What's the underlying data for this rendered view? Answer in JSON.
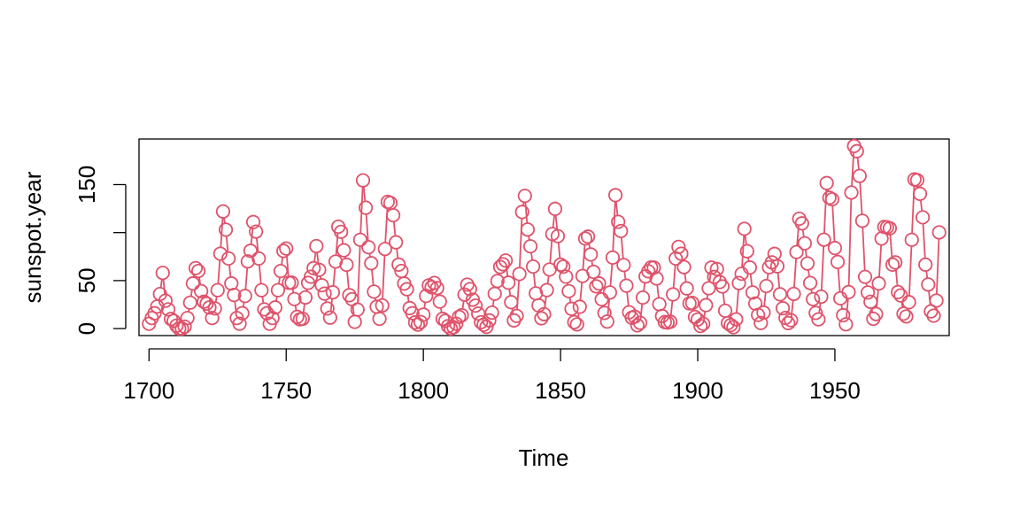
{
  "chart_data": {
    "type": "line",
    "plot_style": "both",
    "xlabel": "Time",
    "ylabel": "sunspot.year",
    "color": "#DF536B",
    "xlim": [
      1700,
      1988
    ],
    "ylim": [
      0,
      190.2
    ],
    "x_ticks": [
      1700,
      1750,
      1800,
      1850,
      1900,
      1950
    ],
    "y_ticks": [
      0,
      50,
      150
    ],
    "x_start": 1700,
    "values": [
      5,
      11,
      16,
      23,
      36,
      58,
      29,
      20,
      10,
      8,
      3,
      0,
      0,
      2,
      11,
      27,
      47,
      63,
      60,
      39,
      28,
      26,
      22,
      11,
      21,
      40,
      78,
      122,
      103,
      73,
      47,
      35,
      11,
      5,
      16,
      34,
      70,
      81,
      111,
      101,
      73,
      40,
      20,
      16,
      5,
      11,
      22,
      40,
      60,
      80.9,
      83.4,
      47.7,
      47.8,
      30.7,
      12.2,
      9.6,
      10.2,
      32.4,
      47.6,
      54,
      62.9,
      85.9,
      61.2,
      45.1,
      36.4,
      20.9,
      11.4,
      37.8,
      69.8,
      106.1,
      100.8,
      81.6,
      66.5,
      34.8,
      30.6,
      7,
      19.8,
      92.5,
      154.4,
      125.9,
      84.8,
      68.1,
      38.5,
      22.8,
      10.2,
      24.1,
      82.9,
      132,
      130.9,
      118.1,
      89.9,
      66.6,
      60,
      46.9,
      41,
      21.3,
      16,
      6.4,
      4.1,
      6.8,
      14.5,
      34,
      45,
      43.1,
      47.5,
      42.2,
      28.1,
      10.1,
      8.1,
      2.5,
      0,
      1.4,
      5,
      12.2,
      13.9,
      35.4,
      45.8,
      41.1,
      30.1,
      23.9,
      15.6,
      6.6,
      4,
      1.8,
      8.5,
      16.6,
      36.3,
      49.6,
      64.2,
      67,
      70.9,
      47.8,
      27.5,
      8.5,
      13.2,
      56.9,
      121.5,
      138.3,
      103.2,
      85.7,
      64.6,
      36.7,
      24.2,
      10.7,
      15,
      40.1,
      61.5,
      98.5,
      124.7,
      96.3,
      66.6,
      64.5,
      54.1,
      39,
      20.6,
      6.7,
      4.3,
      22.7,
      54.8,
      93.8,
      95.8,
      77.2,
      59.1,
      44,
      47,
      30.5,
      16.3,
      7.3,
      37.6,
      74,
      139,
      111.2,
      101.6,
      66.2,
      44.7,
      17,
      11.3,
      12.4,
      3.4,
      6,
      32.3,
      54.3,
      59.7,
      63.7,
      63.5,
      52.2,
      25.4,
      13.1,
      6.8,
      6.3,
      7.1,
      35.6,
      73,
      85.1,
      78,
      64,
      41.8,
      26.2,
      26.7,
      12.1,
      9.5,
      2.7,
      5,
      24.4,
      42,
      63.5,
      53.8,
      62,
      48.5,
      43.9,
      18.6,
      5.7,
      3.6,
      1.4,
      9.6,
      47.4,
      57.1,
      103.9,
      80.6,
      63.6,
      37.6,
      26.1,
      14.2,
      5.8,
      16.7,
      44.3,
      63.9,
      69,
      77.8,
      64.9,
      35.7,
      21.2,
      11.1,
      5.7,
      8.7,
      36.1,
      79.7,
      114.4,
      109.6,
      88.8,
      67.8,
      47.5,
      30.6,
      16.3,
      9.6,
      33.2,
      92.6,
      151.6,
      136.3,
      134.7,
      83.9,
      69.4,
      31.5,
      13.9,
      4.4,
      38,
      141.7,
      190.2,
      184.8,
      159,
      112.3,
      53.9,
      37.6,
      27.9,
      10.2,
      15.1,
      47,
      93.8,
      105.9,
      105.5,
      104.5,
      66.6,
      68.9,
      38,
      34.5,
      15.5,
      12.6,
      27.5,
      92.5,
      155.4,
      154.6,
      140.4,
      115.9,
      66.6,
      45.9,
      17.9,
      13.4,
      29.2,
      100.2
    ]
  }
}
